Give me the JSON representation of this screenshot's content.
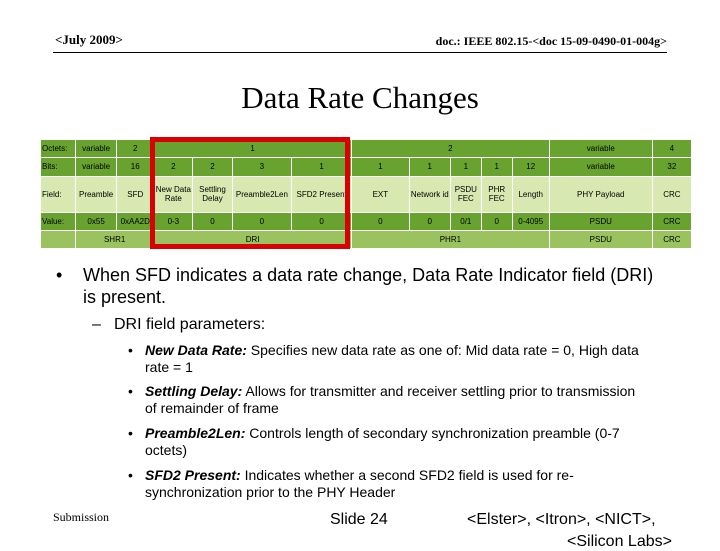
{
  "header": {
    "date": "<July 2009>",
    "doc": "doc.: IEEE 802.15-<doc 15-09-0490-01-004g>"
  },
  "title": "Data Rate Changes",
  "frame": {
    "octets_label": "Octets:",
    "bits_label": "Bits:",
    "field_label": "Field:",
    "value_label": "Value:",
    "octets": [
      "variable",
      "2",
      "1",
      "2",
      "variable",
      "4"
    ],
    "bits": [
      "variable",
      "16",
      "2",
      "2",
      "3",
      "1",
      "1",
      "1",
      "1",
      "1",
      "12",
      "variable",
      "32"
    ],
    "fields": [
      "Preamble",
      "SFD",
      "New Data Rate",
      "Settling Delay",
      "Preamble2Len",
      "SFD2 Present",
      "EXT",
      "Network id",
      "PSDU FEC",
      "PHR FEC",
      "Length",
      "PHY Payload",
      "CRC"
    ],
    "values": [
      "0x55",
      "0xAA2D",
      "0-3",
      "0",
      "0",
      "0",
      "0",
      "0",
      "0/1",
      "0",
      "0-4095",
      "PSDU",
      "CRC"
    ],
    "groups": {
      "shr": "SHR1",
      "dri": "DRI",
      "phr": "PHR1",
      "psdu": "PSDU",
      "crc": "CRC"
    }
  },
  "bullets": {
    "main": "When SFD indicates a data rate change, Data Rate Indicator field (DRI) is present.",
    "sub_heading": "DRI field parameters:",
    "items": [
      {
        "term": "New Data Rate:",
        "text": " Specifies new data rate as one of: Mid data rate = 0, High data rate = 1"
      },
      {
        "term": "Settling Delay:",
        "text": " Allows for transmitter and receiver settling prior to transmission of remainder of frame"
      },
      {
        "term": "Preamble2Len:",
        "text": " Controls length of secondary synchronization preamble (0-7 octets)"
      },
      {
        "term": "SFD2 Present:",
        "text": " Indicates whether a second SFD2 field is used for re-synchronization prior to the PHY Header"
      }
    ]
  },
  "footer": {
    "submission": "Submission",
    "slide": "Slide 24",
    "authors": "<Elster>, <Itron>, <NICT>,",
    "authors2": "<Silicon Labs>"
  }
}
